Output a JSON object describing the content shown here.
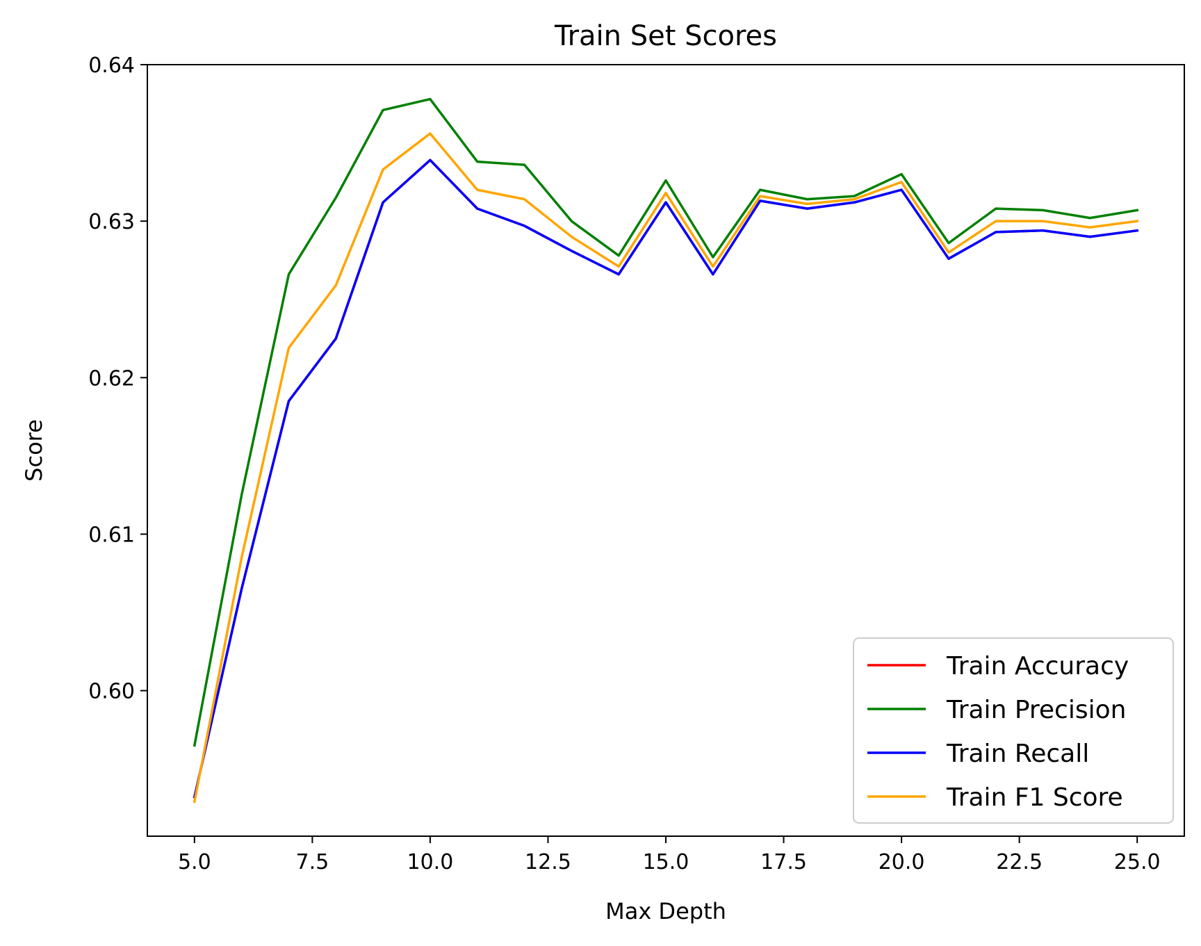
{
  "chart_data": {
    "type": "line",
    "title": "Train Set Scores",
    "xlabel": "Max Depth",
    "ylabel": "Score",
    "xlim": [
      4,
      26
    ],
    "ylim": [
      0.5907,
      0.64
    ],
    "xticks": [
      5.0,
      7.5,
      10.0,
      12.5,
      15.0,
      17.5,
      20.0,
      22.5,
      25.0
    ],
    "xtick_labels": [
      "5.0",
      "7.5",
      "10.0",
      "12.5",
      "15.0",
      "17.5",
      "20.0",
      "22.5",
      "25.0"
    ],
    "yticks": [
      0.6,
      0.61,
      0.62,
      0.63,
      0.64
    ],
    "ytick_labels": [
      "0.60",
      "0.61",
      "0.62",
      "0.63",
      "0.64"
    ],
    "grid": false,
    "legend_position": "lower-right",
    "x": [
      5,
      6,
      7,
      8,
      9,
      10,
      11,
      12,
      13,
      14,
      15,
      16,
      17,
      18,
      19,
      20,
      21,
      22,
      23,
      24,
      25
    ],
    "series": [
      {
        "name": "Train Accuracy",
        "color": "#ff0000",
        "values": [
          0.5932,
          0.6065,
          0.6185,
          0.6225,
          0.6312,
          0.6339,
          0.6308,
          0.6297,
          0.6281,
          0.6266,
          0.6312,
          0.6266,
          0.6313,
          0.6308,
          0.6312,
          0.632,
          0.6276,
          0.6293,
          0.6294,
          0.629,
          0.6294
        ]
      },
      {
        "name": "Train Precision",
        "color": "#008000",
        "values": [
          0.5965,
          0.6125,
          0.6266,
          0.6315,
          0.6371,
          0.6378,
          0.6338,
          0.6336,
          0.63,
          0.6278,
          0.6326,
          0.6277,
          0.632,
          0.6314,
          0.6316,
          0.633,
          0.6286,
          0.6308,
          0.6307,
          0.6302,
          0.6307
        ]
      },
      {
        "name": "Train Recall",
        "color": "#0000ff",
        "values": [
          0.5932,
          0.6065,
          0.6185,
          0.6225,
          0.6312,
          0.6339,
          0.6308,
          0.6297,
          0.6281,
          0.6266,
          0.6312,
          0.6266,
          0.6313,
          0.6308,
          0.6312,
          0.632,
          0.6276,
          0.6293,
          0.6294,
          0.629,
          0.6294
        ]
      },
      {
        "name": "Train F1 Score",
        "color": "#ffa500",
        "values": [
          0.5929,
          0.6085,
          0.6219,
          0.6259,
          0.6333,
          0.6356,
          0.632,
          0.6314,
          0.629,
          0.6271,
          0.6318,
          0.6271,
          0.6316,
          0.6311,
          0.6314,
          0.6325,
          0.628,
          0.63,
          0.63,
          0.6296,
          0.63
        ]
      }
    ]
  }
}
